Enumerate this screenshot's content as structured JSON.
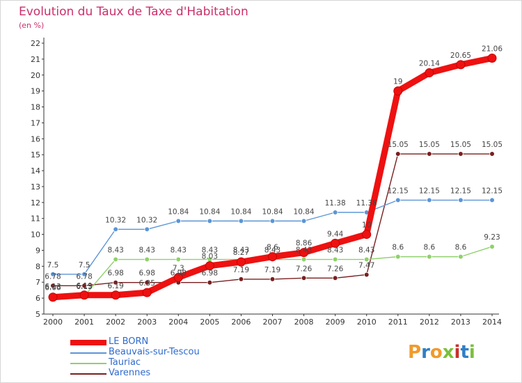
{
  "header": {
    "title": "Evolution du Taux de Taxe d'Habitation",
    "subtitle": "(en %)"
  },
  "logo": {
    "text": "Proxiti",
    "colors": [
      "#f19a2a",
      "#2e7fc7",
      "#f19a2a",
      "#7bbf3a",
      "#c9302c",
      "#2e7fc7",
      "#7bbf3a"
    ]
  },
  "chart_data": {
    "type": "line",
    "x": [
      "2000",
      "2001",
      "2002",
      "2003",
      "2004",
      "2005",
      "2006",
      "2007",
      "2008",
      "2009",
      "2010",
      "2011",
      "2012",
      "2013",
      "2014"
    ],
    "ylim": [
      5,
      22
    ],
    "yticks": [
      5,
      6,
      7,
      8,
      9,
      10,
      11,
      12,
      13,
      14,
      15,
      16,
      17,
      18,
      19,
      20,
      21,
      22
    ],
    "grid": false,
    "legend_position": "bottom-left",
    "series": [
      {
        "name": "Varennes",
        "color": "#7a1f1f",
        "values": [
          6.78,
          6.78,
          6.98,
          6.98,
          6.98,
          6.98,
          7.19,
          7.19,
          7.26,
          7.26,
          7.47,
          15.05,
          15.05,
          15.05,
          15.05
        ],
        "labels": [
          "6.78",
          "6.78",
          "6.98",
          "6.98",
          "6.98",
          "6.98",
          "7.19",
          "7.19",
          "7.26",
          "7.26",
          "7.47",
          "15.05",
          "15.05",
          "15.05",
          "15.05"
        ]
      },
      {
        "name": "Tauriac",
        "color": "#8fd16a",
        "values": [
          6.13,
          6.13,
          8.43,
          8.43,
          8.43,
          8.43,
          8.43,
          8.43,
          8.43,
          8.43,
          8.43,
          8.6,
          8.6,
          8.6,
          9.23
        ],
        "labels": [
          "6.13",
          "6.13",
          "8.43",
          "8.43",
          "8.43",
          "8.43",
          "8.43",
          "8.43",
          "8.43",
          "8.43",
          "8.43",
          "8.6",
          "8.6",
          "8.6",
          "9.23"
        ]
      },
      {
        "name": "Beauvais-sur-Tescou",
        "color": "#5b95d6",
        "values": [
          7.5,
          7.5,
          10.32,
          10.32,
          10.84,
          10.84,
          10.84,
          10.84,
          10.84,
          11.38,
          11.38,
          12.15,
          12.15,
          12.15,
          12.15
        ],
        "labels": [
          "7.5",
          "7.5",
          "10.32",
          "10.32",
          "10.84",
          "10.84",
          "10.84",
          "10.84",
          "10.84",
          "11.38",
          "11.38",
          "12.15",
          "12.15",
          "12.15",
          "12.15"
        ]
      },
      {
        "name": "LE BORN",
        "color": "#ee1111",
        "values": [
          6.06,
          6.19,
          6.19,
          6.35,
          7.3,
          8.03,
          8.27,
          8.6,
          8.86,
          9.44,
          10.0,
          19.0,
          20.14,
          20.65,
          21.06
        ],
        "labels": [
          "6.06",
          "6.19",
          "6.19",
          "6.35",
          "7.3",
          "8.03",
          "8.27",
          "8.6",
          "8.86",
          "9.44",
          "10",
          "19",
          "20.14",
          "20.65",
          "21.06"
        ]
      }
    ],
    "legend_order": [
      "LE BORN",
      "Beauvais-sur-Tescou",
      "Tauriac",
      "Varennes"
    ]
  }
}
